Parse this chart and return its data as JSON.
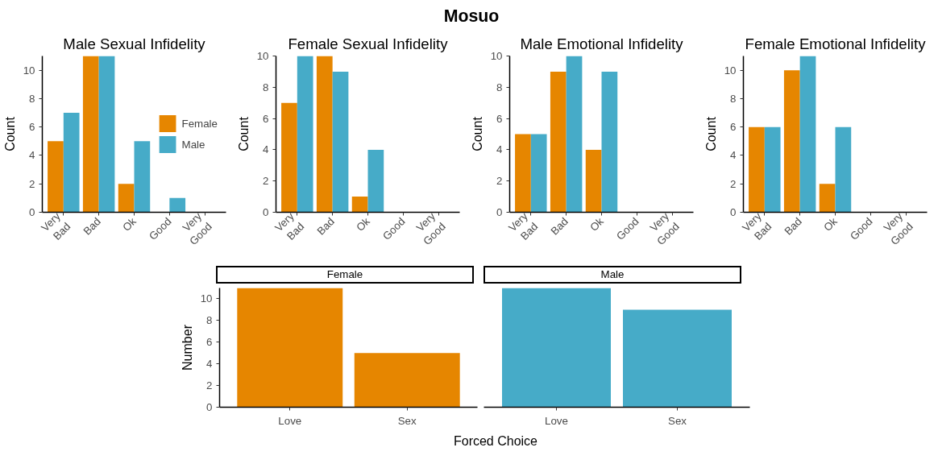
{
  "chart_data": [
    {
      "type": "bar",
      "title": "Male Sexual Infidelity",
      "ylabel": "Count",
      "annotations": [
        "Mosuo"
      ],
      "categories": [
        "Very\nBad",
        "Bad",
        "Ok",
        "Good",
        "Very\nGood"
      ],
      "ylim": [
        0,
        11
      ],
      "yticks": [
        0,
        2,
        4,
        6,
        8,
        10
      ],
      "legend": "right",
      "series": [
        {
          "name": "Female",
          "color": "#e68600",
          "values": [
            5,
            11,
            2,
            0,
            0
          ]
        },
        {
          "name": "Male",
          "color": "#46abc8",
          "values": [
            7,
            11,
            5,
            1,
            0
          ]
        }
      ]
    },
    {
      "type": "bar",
      "title": "Female Sexual Infidelity",
      "ylabel": "Count",
      "categories": [
        "Very\nBad",
        "Bad",
        "Ok",
        "Good",
        "Very\nGood"
      ],
      "ylim": [
        0,
        10
      ],
      "yticks": [
        0,
        2,
        4,
        6,
        8,
        10
      ],
      "series": [
        {
          "color": "#e68600",
          "values": [
            7,
            10,
            1,
            0,
            0
          ]
        },
        {
          "color": "#46abc8",
          "values": [
            10,
            9,
            4,
            0,
            0
          ]
        }
      ]
    },
    {
      "type": "bar",
      "title": "Male Emotional Infidelity",
      "ylabel": "Count",
      "categories": [
        "Very\nBad",
        "Bad",
        "Ok",
        "Good",
        "Very\nGood"
      ],
      "ylim": [
        0,
        10
      ],
      "yticks": [
        0,
        2,
        4,
        6,
        8,
        10
      ],
      "series": [
        {
          "color": "#e68600",
          "values": [
            5,
            9,
            4,
            0,
            0
          ]
        },
        {
          "color": "#46abc8",
          "values": [
            5,
            10,
            9,
            0,
            0
          ]
        }
      ]
    },
    {
      "type": "bar",
      "title": "Female Emotional Infidelity",
      "ylabel": "Count",
      "categories": [
        "Very\nBad",
        "Bad",
        "Ok",
        "Good",
        "Very\nGood"
      ],
      "ylim": [
        0,
        11
      ],
      "yticks": [
        0,
        2,
        4,
        6,
        8,
        10
      ],
      "series": [
        {
          "color": "#e68600",
          "values": [
            6,
            10,
            2,
            0,
            0
          ]
        },
        {
          "color": "#46abc8",
          "values": [
            6,
            11,
            6,
            0,
            0
          ]
        }
      ]
    },
    {
      "type": "bar",
      "title": "Female",
      "ylabel": "Number",
      "xlabel": "Forced Choice",
      "categories": [
        "Love",
        "Sex"
      ],
      "ylim": [
        0,
        11
      ],
      "yticks": [
        0,
        2,
        4,
        6,
        8,
        10
      ],
      "color": "#e68600",
      "values": [
        11,
        5
      ]
    },
    {
      "type": "bar",
      "title": "Male",
      "categories": [
        "Love",
        "Sex"
      ],
      "ylim": [
        0,
        11
      ],
      "yticks": [
        0,
        2,
        4,
        6,
        8,
        10
      ],
      "tick_labels": "x",
      "color": "#46abc8",
      "values": [
        11,
        9
      ]
    }
  ]
}
